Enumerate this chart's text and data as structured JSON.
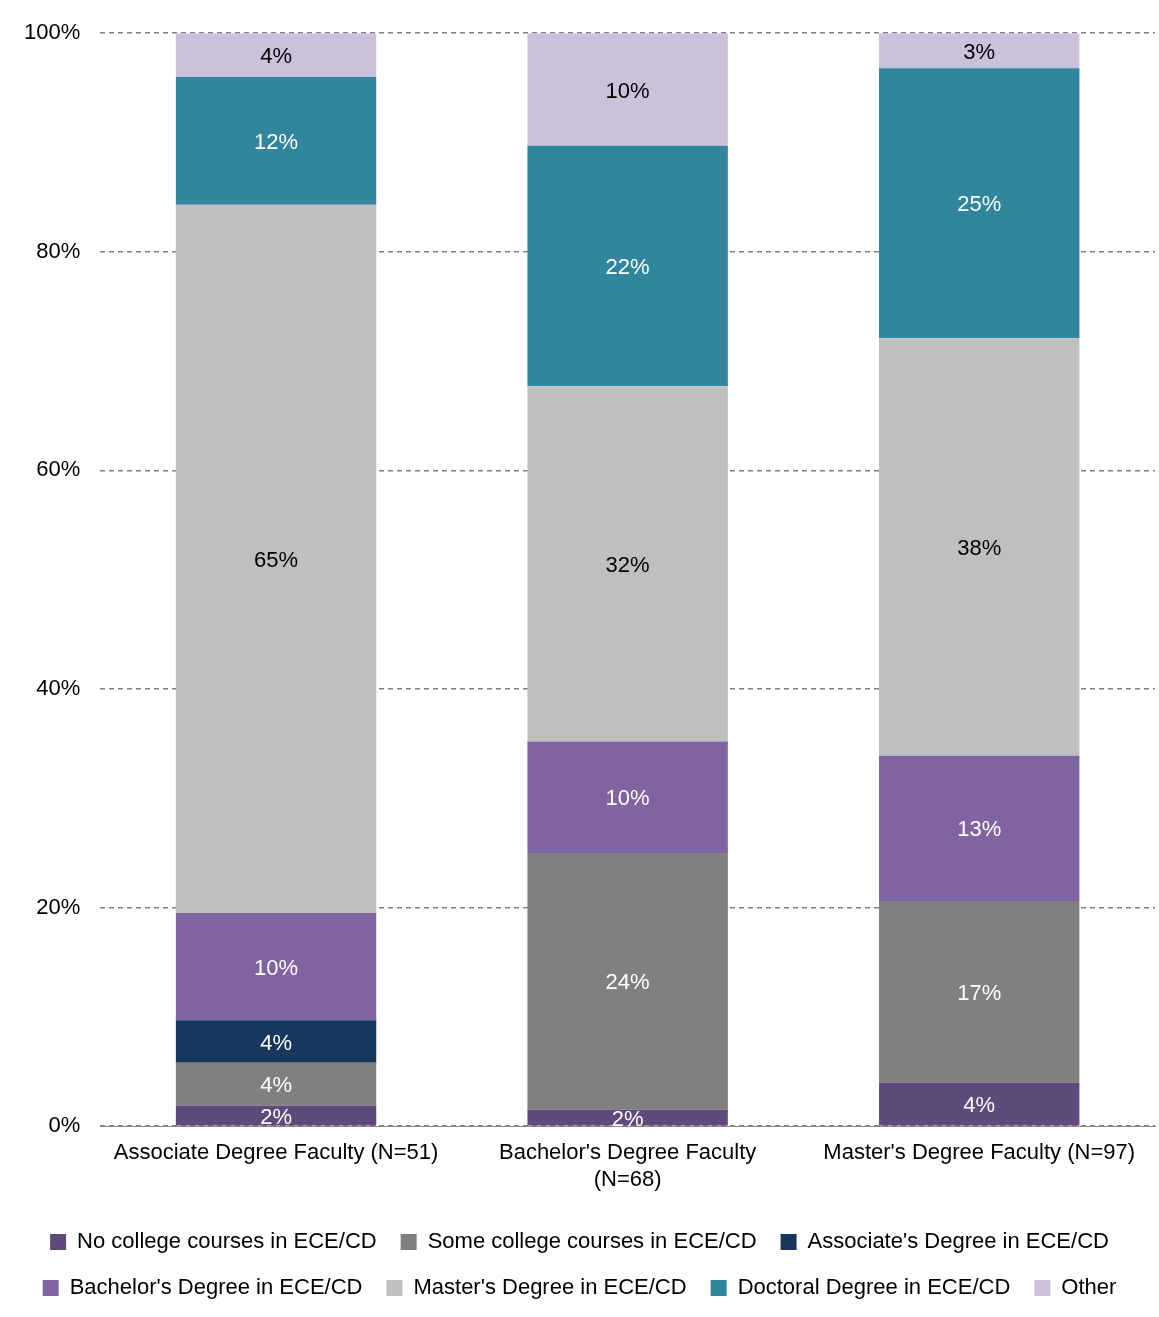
{
  "chart_data": {
    "type": "bar",
    "stacked": true,
    "categories": [
      "Associate Degree Faculty (N=51)",
      "Bachelor's Degree Faculty (N=68)",
      "Master's Degree Faculty (N=97)"
    ],
    "series": [
      {
        "name": "No college courses in ECE/CD",
        "color": "#5f4b7b",
        "values": [
          1.9,
          1.5,
          4.0
        ],
        "value_labels": [
          "2%",
          "2%",
          "4%"
        ]
      },
      {
        "name": "Some college courses in ECE/CD",
        "color": "#808080",
        "values": [
          3.9,
          23.5,
          16.6
        ],
        "value_labels": [
          "4%",
          "24%",
          "17%"
        ]
      },
      {
        "name": "Associate's Degree in ECE/CD",
        "color": "#17375e",
        "values": [
          3.9,
          0,
          0
        ],
        "value_labels": [
          "4%",
          null,
          null
        ]
      },
      {
        "name": "Bachelor's Degree in ECE/CD",
        "color": "#8064a2",
        "values": [
          9.8,
          10.2,
          13.3
        ],
        "value_labels": [
          "10%",
          "10%",
          "13%"
        ]
      },
      {
        "name": "Master's Degree in ECE/CD",
        "color": "#bfbfbf",
        "values": [
          64.8,
          32.5,
          38.2
        ],
        "value_labels": [
          "65%",
          "32%",
          "38%"
        ]
      },
      {
        "name": "Doctoral Degree in ECE/CD",
        "color": "#31859c",
        "values": [
          11.7,
          22.0,
          24.7
        ],
        "value_labels": [
          "12%",
          "22%",
          "25%"
        ]
      },
      {
        "name": "Other",
        "color": "#ccc1da",
        "values": [
          4.0,
          10.3,
          3.2
        ],
        "value_labels": [
          "4%",
          "10%",
          "3%"
        ]
      }
    ],
    "ylim": [
      0,
      100
    ],
    "yticks": [
      {
        "value": 0,
        "label": "0%"
      },
      {
        "value": 20,
        "label": "20%"
      },
      {
        "value": 40,
        "label": "40%"
      },
      {
        "value": 60,
        "label": "60%"
      },
      {
        "value": 80,
        "label": "80%"
      },
      {
        "value": 100,
        "label": "100%"
      }
    ],
    "grid": "y",
    "legend": "bottom"
  }
}
